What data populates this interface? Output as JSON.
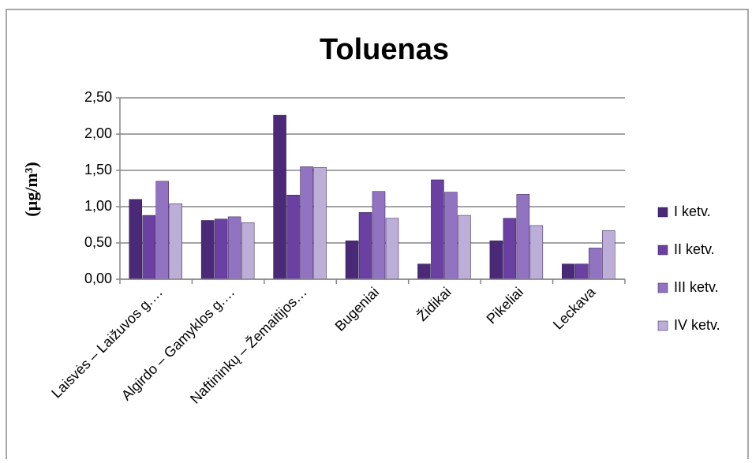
{
  "chart_data": {
    "type": "bar",
    "title": "Toluenas",
    "y_label": "(µg/m³)",
    "categories": [
      "Laisvės – Laižuvos g.…",
      "Algirdo – Gamyklos g.…",
      "Naftininkų – Žemaitijos…",
      "Bugeniai",
      "Židikai",
      "Pikeliai",
      "Leckava"
    ],
    "series": [
      {
        "name": "I ketv.",
        "color": "#4a2a78",
        "values": [
          1.1,
          0.81,
          2.26,
          0.53,
          0.21,
          0.53,
          0.21
        ]
      },
      {
        "name": "II ketv.",
        "color": "#6a40a2",
        "values": [
          0.88,
          0.83,
          1.16,
          0.92,
          1.37,
          0.84,
          0.21
        ]
      },
      {
        "name": "III ketv.",
        "color": "#9273c2",
        "values": [
          1.35,
          0.86,
          1.55,
          1.21,
          1.2,
          1.17,
          0.43
        ]
      },
      {
        "name": "IV ketv.",
        "color": "#bdaed8",
        "values": [
          1.04,
          0.78,
          1.54,
          0.84,
          0.88,
          0.74,
          0.67
        ]
      }
    ],
    "ylim": [
      0,
      2.5
    ],
    "yticks": [
      {
        "value": 0,
        "label": "0,00"
      },
      {
        "value": 0.5,
        "label": "0,50"
      },
      {
        "value": 1,
        "label": "1,00"
      },
      {
        "value": 1.5,
        "label": "1,50"
      },
      {
        "value": 2,
        "label": "2,00"
      },
      {
        "value": 2.5,
        "label": "2,50"
      }
    ],
    "grid": true,
    "legend": "right"
  }
}
